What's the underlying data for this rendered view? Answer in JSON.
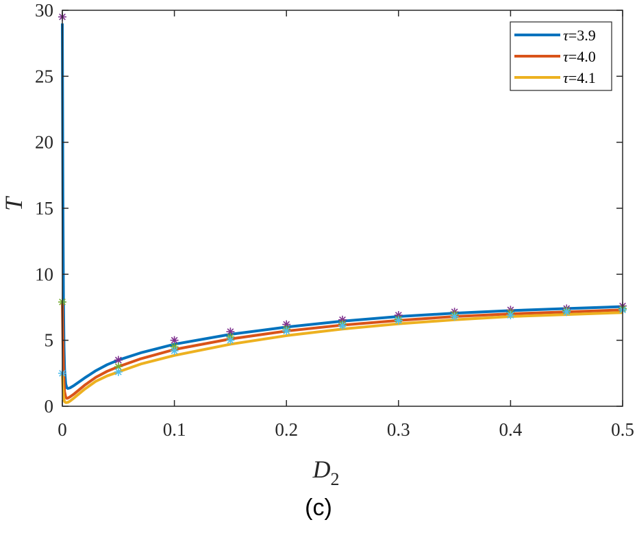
{
  "caption": "(c)",
  "chart_data": {
    "type": "line",
    "title": "",
    "xlabel": "D",
    "xlabel_subscript": "2",
    "ylabel": "T",
    "xlim": [
      0,
      0.5
    ],
    "ylim": [
      0,
      30
    ],
    "xticks": [
      0,
      0.1,
      0.2,
      0.3,
      0.4,
      0.5
    ],
    "xtick_labels": [
      "0",
      "0.1",
      "0.2",
      "0.3",
      "0.4",
      "0.5"
    ],
    "yticks": [
      0,
      5,
      10,
      15,
      20,
      25,
      30
    ],
    "ytick_labels": [
      "0",
      "5",
      "10",
      "15",
      "20",
      "25",
      "30"
    ],
    "grid": false,
    "legend_position": "top-right",
    "series": [
      {
        "name": "τ=3.9",
        "legend_symbol": "τ",
        "legend_value": "=3.9",
        "color": "#0072BD",
        "x": [
          0.0,
          0.0005,
          0.001,
          0.0015,
          0.002,
          0.003,
          0.004,
          0.005,
          0.007,
          0.01,
          0.015,
          0.02,
          0.03,
          0.04,
          0.05,
          0.07,
          0.1,
          0.15,
          0.2,
          0.25,
          0.3,
          0.35,
          0.4,
          0.45,
          0.5
        ],
        "y": [
          29.0,
          16.0,
          8.0,
          4.5,
          2.8,
          1.7,
          1.4,
          1.35,
          1.4,
          1.55,
          1.85,
          2.15,
          2.7,
          3.15,
          3.5,
          4.05,
          4.7,
          5.45,
          6.0,
          6.45,
          6.8,
          7.05,
          7.25,
          7.4,
          7.55
        ]
      },
      {
        "name": "τ=4.0",
        "legend_symbol": "τ",
        "legend_value": "=4.0",
        "color": "#D95319",
        "x": [
          0.0,
          0.0005,
          0.001,
          0.0015,
          0.002,
          0.003,
          0.004,
          0.005,
          0.007,
          0.01,
          0.015,
          0.02,
          0.03,
          0.04,
          0.05,
          0.07,
          0.1,
          0.15,
          0.2,
          0.25,
          0.3,
          0.35,
          0.4,
          0.45,
          0.5
        ],
        "y": [
          8.0,
          5.0,
          3.0,
          1.8,
          1.1,
          0.7,
          0.6,
          0.62,
          0.72,
          0.9,
          1.25,
          1.6,
          2.2,
          2.65,
          3.0,
          3.6,
          4.3,
          5.1,
          5.7,
          6.15,
          6.5,
          6.8,
          7.0,
          7.15,
          7.3
        ]
      },
      {
        "name": "τ=4.1",
        "legend_symbol": "τ",
        "legend_value": "=4.1",
        "color": "#EDB120",
        "x": [
          0.0,
          0.0005,
          0.001,
          0.0015,
          0.002,
          0.003,
          0.004,
          0.005,
          0.007,
          0.01,
          0.015,
          0.02,
          0.03,
          0.04,
          0.05,
          0.07,
          0.1,
          0.15,
          0.2,
          0.25,
          0.3,
          0.35,
          0.4,
          0.45,
          0.5
        ],
        "y": [
          2.5,
          1.5,
          0.8,
          0.5,
          0.35,
          0.28,
          0.28,
          0.3,
          0.4,
          0.6,
          0.95,
          1.3,
          1.9,
          2.3,
          2.6,
          3.2,
          3.85,
          4.7,
          5.35,
          5.85,
          6.25,
          6.55,
          6.8,
          6.95,
          7.1
        ]
      }
    ],
    "marker_series": [
      {
        "name": "τ=3.9 markers",
        "color": "#7E2F8E",
        "x": [
          0.0,
          0.05,
          0.1,
          0.15,
          0.2,
          0.25,
          0.3,
          0.35,
          0.4,
          0.45,
          0.5
        ],
        "y": [
          29.5,
          3.5,
          5.0,
          5.65,
          6.2,
          6.55,
          6.9,
          7.15,
          7.3,
          7.4,
          7.6
        ]
      },
      {
        "name": "τ=4.0 markers",
        "color": "#77AC30",
        "x": [
          0.0,
          0.05,
          0.1,
          0.15,
          0.2,
          0.25,
          0.3,
          0.35,
          0.4,
          0.45,
          0.5
        ],
        "y": [
          7.9,
          3.0,
          4.5,
          5.25,
          5.85,
          6.25,
          6.6,
          6.95,
          7.1,
          7.25,
          7.4
        ]
      },
      {
        "name": "τ=4.1 markers",
        "color": "#4DBEEE",
        "x": [
          0.0,
          0.05,
          0.1,
          0.15,
          0.2,
          0.25,
          0.3,
          0.35,
          0.4,
          0.45,
          0.5
        ],
        "y": [
          2.5,
          2.6,
          4.2,
          5.0,
          5.7,
          6.1,
          6.5,
          6.8,
          6.9,
          7.15,
          7.3
        ]
      }
    ]
  }
}
